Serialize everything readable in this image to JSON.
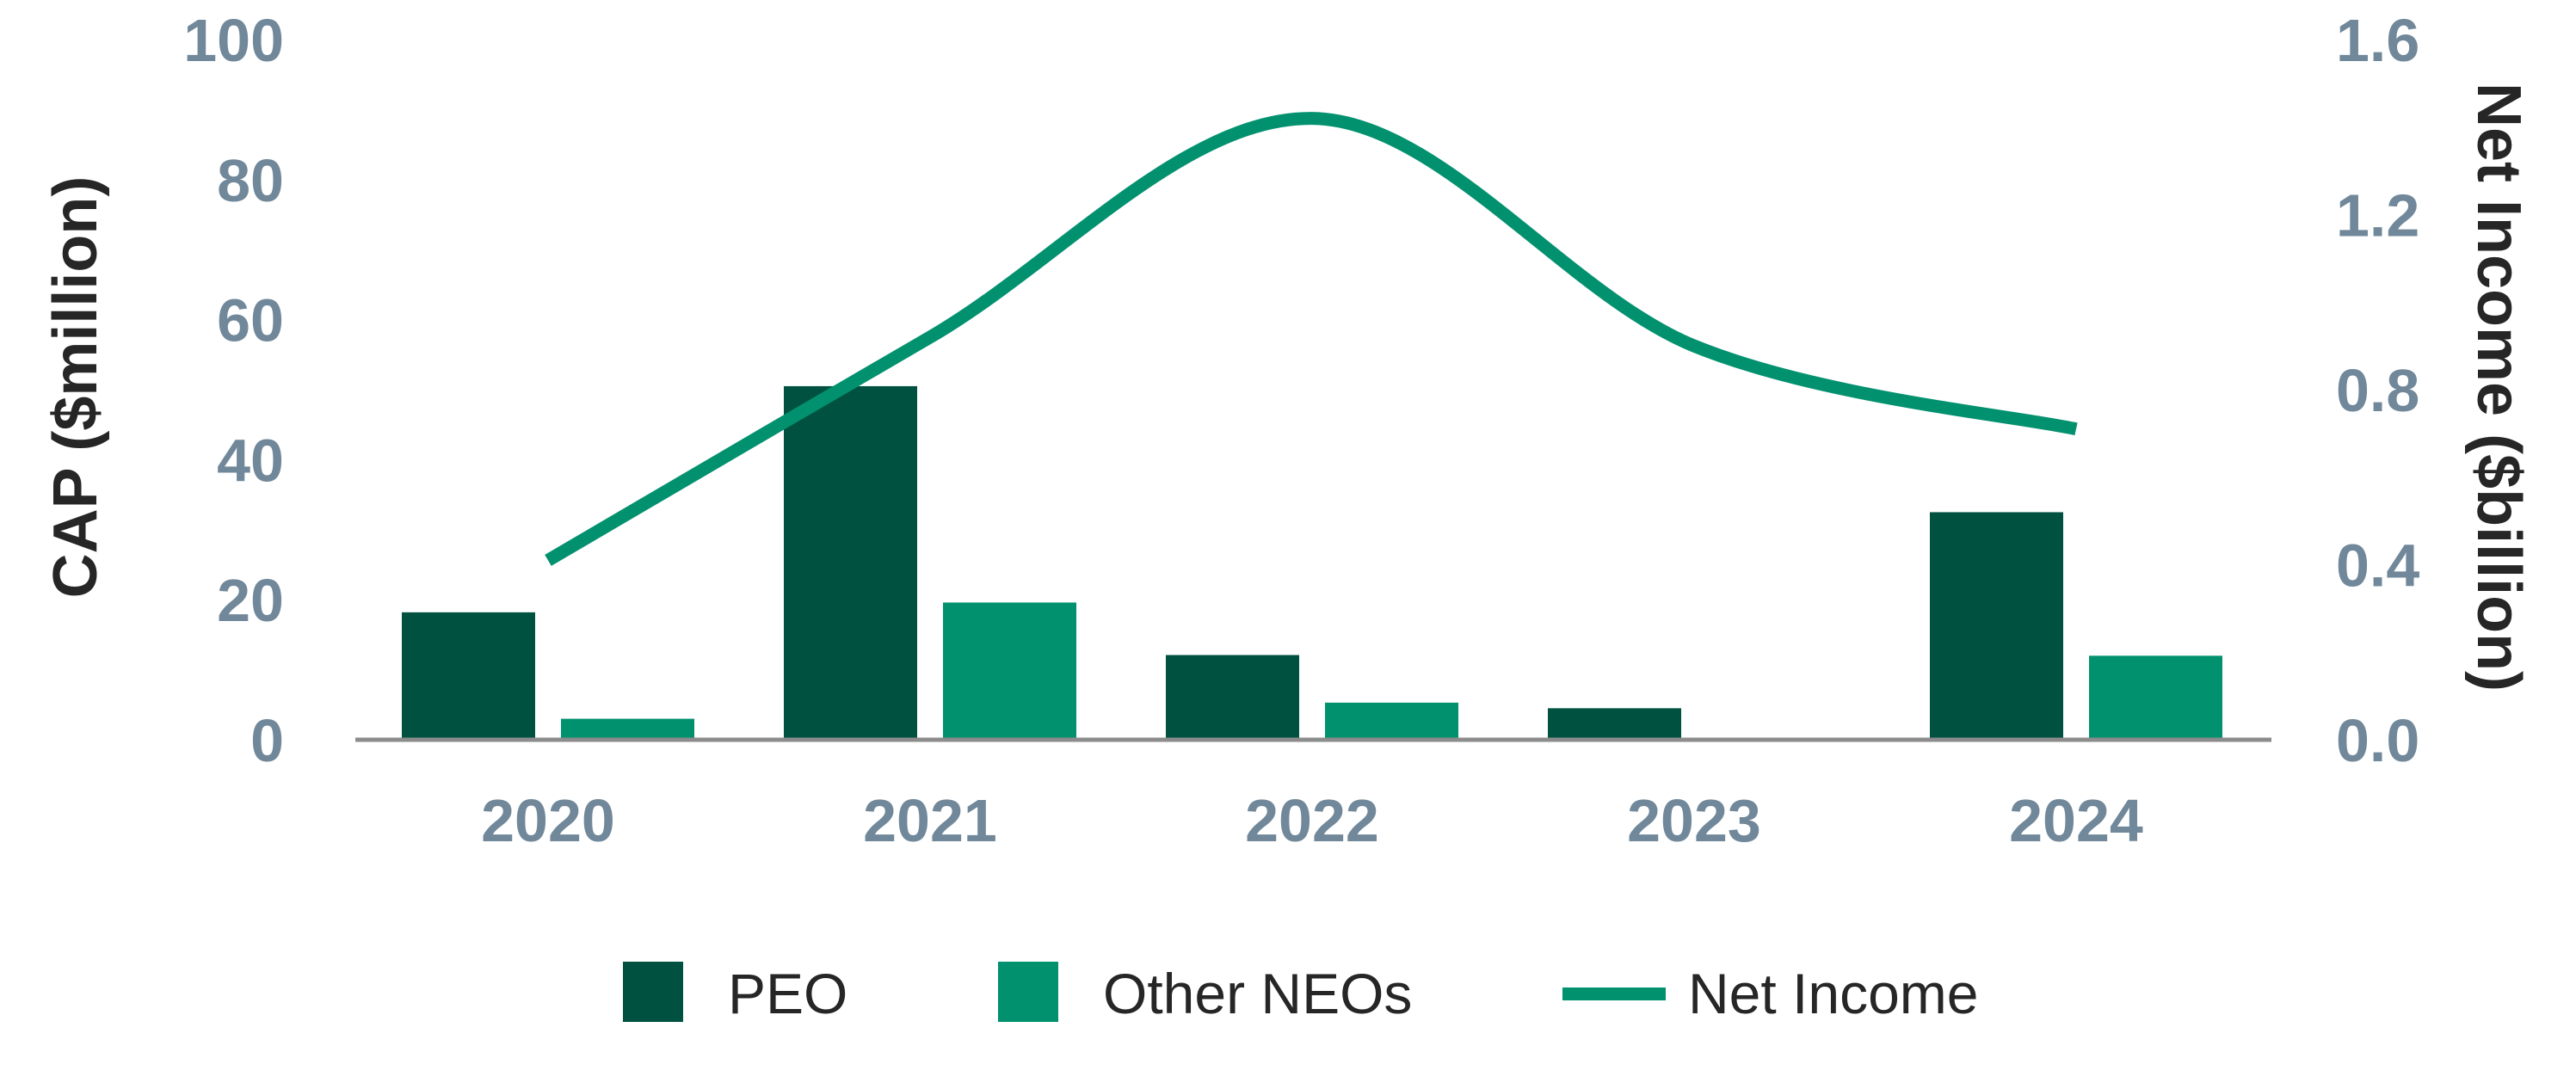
{
  "chart_data": {
    "type": "bar",
    "categories": [
      "2020",
      "2021",
      "2022",
      "2023",
      "2024"
    ],
    "series": [
      {
        "name": "PEO",
        "type": "bar",
        "axis": "left",
        "color": "#00513F",
        "values": [
          18.2,
          50.5,
          12.1,
          4.5,
          32.5
        ]
      },
      {
        "name": "Other NEOs",
        "type": "bar",
        "axis": "left",
        "color": "#02916F",
        "values": [
          3.0,
          19.6,
          5.3,
          0,
          12.0
        ]
      },
      {
        "name": "Net Income",
        "type": "line",
        "axis": "right",
        "color": "#02916F",
        "smooth": true,
        "values": [
          0.41,
          0.92,
          1.42,
          0.9,
          0.71
        ]
      }
    ],
    "ylabel": "CAP ($million)",
    "y2label": "Net Income ($billion)",
    "ylim": [
      0,
      100
    ],
    "y2lim": [
      0,
      1.6
    ],
    "yticks": [
      "0",
      "20",
      "40",
      "60",
      "80",
      "100"
    ],
    "y2ticks": [
      "0.0",
      "0.4",
      "0.8",
      "1.2",
      "1.6"
    ],
    "grid": false,
    "legend_position": "bottom"
  }
}
